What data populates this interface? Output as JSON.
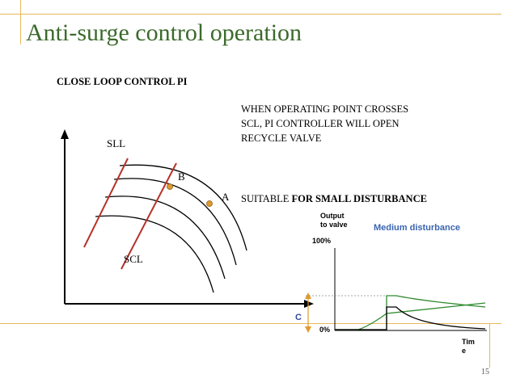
{
  "slide": {
    "title": "Anti-surge control operation",
    "subtitle": "CLOSE LOOP  CONTROL  PI",
    "note_lines": [
      "WHEN OPERATING POINT CROSSES",
      "SCL, PI CONTROLLER WILL OPEN",
      "RECYCLE VALVE"
    ],
    "suitable_prefix": "SUITABLE ",
    "suitable_bold": "FOR SMALL DISTURBANCE",
    "page_number": "15"
  },
  "compressor_map": {
    "label_sll": "SLL",
    "label_scl": "SCL",
    "point_a": "A",
    "point_b": "B",
    "colors": {
      "limit_lines": "#b5322b",
      "points": "#e09a2c",
      "curves": "#000000"
    }
  },
  "response_plot": {
    "y_label_line1": "Output",
    "y_label_line2": "to valve",
    "y_top": "100%",
    "y_bottom": "0%",
    "x_label_line1": "Tim",
    "x_label_line2": "e",
    "legend": "Medium disturbance",
    "c_label": "C",
    "colors": {
      "response": "#2f8a2f",
      "step": "#000000",
      "legend": "#3a64b0",
      "c_marker": "#e09a2c"
    }
  }
}
